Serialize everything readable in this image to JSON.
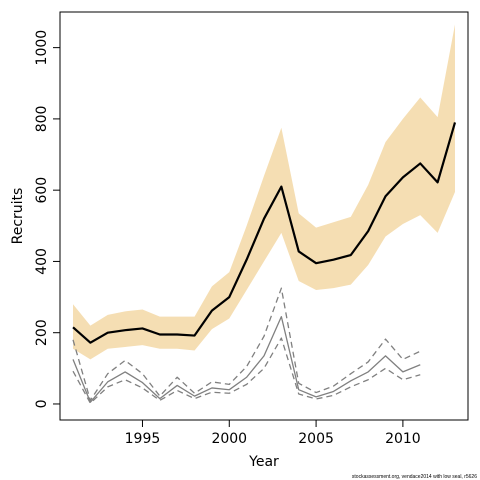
{
  "chart_data": {
    "type": "line",
    "xlabel": "Year",
    "ylabel": "Recruits",
    "xlim": [
      1990.25,
      2013.75
    ],
    "ylim": [
      -45,
      1100
    ],
    "x_ticks": [
      1995,
      2000,
      2005,
      2010
    ],
    "y_ticks": [
      0,
      200,
      400,
      600,
      800,
      1000
    ],
    "grid": false,
    "legend": "none",
    "footer_text": "stockassessment.org, vendace2014 with low seal, r5626",
    "colors": {
      "ci_band": "#f5deb3",
      "main_line": "#000000",
      "grey_lines": "#808080"
    },
    "series": [
      {
        "role": "estimate_ci_band",
        "x": [
          1991,
          1992,
          1993,
          1994,
          1995,
          1996,
          1997,
          1998,
          1999,
          2000,
          2001,
          2002,
          2003,
          2004,
          2005,
          2006,
          2007,
          2008,
          2009,
          2010,
          2011,
          2012,
          2013
        ],
        "lower": [
          155,
          125,
          155,
          160,
          165,
          155,
          155,
          150,
          210,
          240,
          320,
          400,
          480,
          345,
          320,
          325,
          335,
          390,
          470,
          505,
          530,
          480,
          595
        ],
        "upper": [
          280,
          220,
          250,
          260,
          265,
          245,
          245,
          245,
          330,
          370,
          500,
          640,
          775,
          535,
          495,
          510,
          525,
          615,
          735,
          800,
          860,
          805,
          1065
        ]
      },
      {
        "role": "estimate",
        "x": [
          1991,
          1992,
          1993,
          1994,
          1995,
          1996,
          1997,
          1998,
          1999,
          2000,
          2001,
          2002,
          2003,
          2004,
          2005,
          2006,
          2007,
          2008,
          2009,
          2010,
          2011,
          2012,
          2013
        ],
        "values": [
          215,
          172,
          200,
          207,
          212,
          195,
          195,
          192,
          262,
          300,
          405,
          520,
          610,
          428,
          395,
          405,
          418,
          485,
          583,
          636,
          675,
          622,
          790
        ],
        "style": "solid-thick"
      },
      {
        "role": "grey_estimate",
        "x": [
          1991,
          1992,
          1993,
          1994,
          1995,
          1996,
          1997,
          1998,
          1999,
          2000,
          2001,
          2002,
          2003,
          2004,
          2005,
          2006,
          2007,
          2008,
          2009,
          2010,
          2011
        ],
        "values": [
          125,
          5,
          62,
          90,
          60,
          15,
          52,
          22,
          45,
          40,
          75,
          135,
          245,
          40,
          20,
          35,
          65,
          90,
          135,
          90,
          110
        ],
        "style": "solid"
      },
      {
        "role": "grey_upper",
        "x": [
          1991,
          1992,
          1993,
          1994,
          1995,
          1996,
          1997,
          1998,
          1999,
          2000,
          2001,
          2002,
          2003,
          2004,
          2005,
          2006,
          2007,
          2008,
          2009,
          2010,
          2011
        ],
        "values": [
          180,
          10,
          85,
          122,
          85,
          22,
          75,
          30,
          62,
          55,
          105,
          190,
          325,
          58,
          32,
          50,
          85,
          118,
          182,
          125,
          148
        ],
        "style": "dashed"
      },
      {
        "role": "grey_lower",
        "x": [
          1991,
          1992,
          1993,
          1994,
          1995,
          1996,
          1997,
          1998,
          1999,
          2000,
          2001,
          2002,
          2003,
          2004,
          2005,
          2006,
          2007,
          2008,
          2009,
          2010,
          2011
        ],
        "values": [
          92,
          2,
          48,
          68,
          45,
          10,
          38,
          15,
          33,
          30,
          55,
          100,
          185,
          28,
          14,
          24,
          48,
          68,
          100,
          68,
          82
        ],
        "style": "dashed"
      }
    ]
  }
}
